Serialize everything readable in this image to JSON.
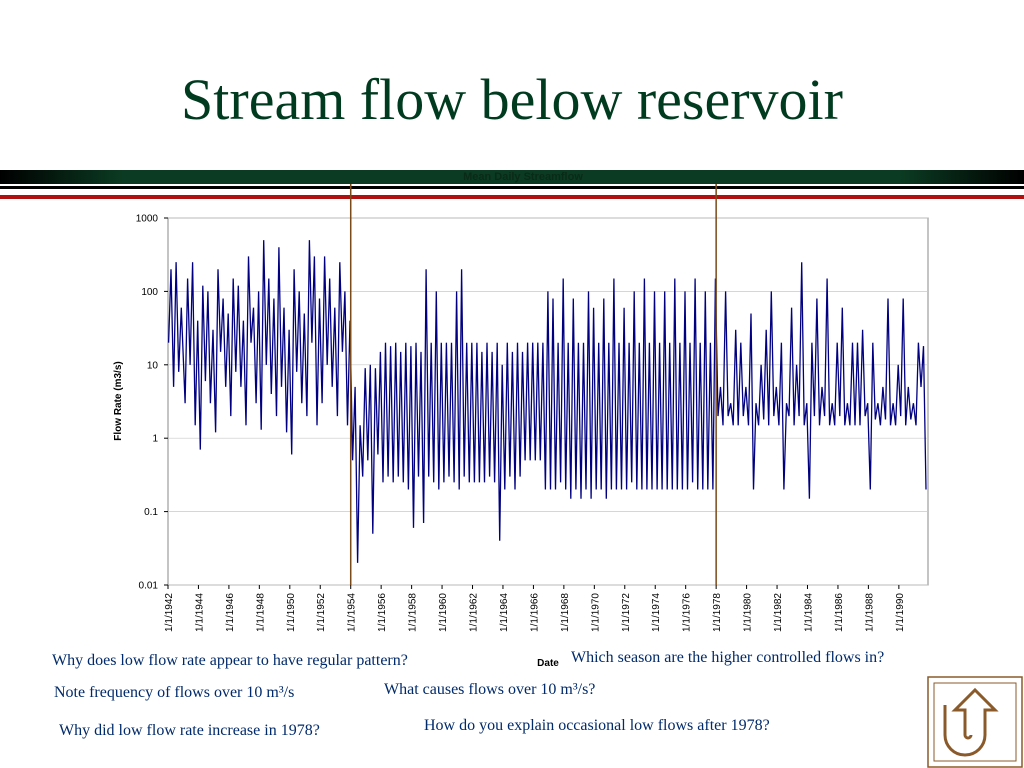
{
  "header": {
    "title": "Stream flow below reservoir"
  },
  "chart_data": {
    "type": "line",
    "title": "Mean Daily Streamflow",
    "x_label": "Date",
    "y_label": "Flow Rate (m3/s)",
    "log_y": true,
    "color": "#000080",
    "xlim": [
      "1942-01-01",
      "1991-12-01"
    ],
    "ylim": [
      0.01,
      1000
    ],
    "yticks": [
      0.01,
      0.1,
      1,
      10,
      100,
      1000
    ],
    "xticks": [
      {
        "value": "1942-01-01",
        "label": "1/1/1942"
      },
      {
        "value": "1944-01-01",
        "label": "1/1/1944"
      },
      {
        "value": "1946-01-01",
        "label": "1/1/1946"
      },
      {
        "value": "1948-01-01",
        "label": "1/1/1948"
      },
      {
        "value": "1950-01-01",
        "label": "1/1/1950"
      },
      {
        "value": "1952-01-01",
        "label": "1/1/1952"
      },
      {
        "value": "1954-01-01",
        "label": "1/1/1954"
      },
      {
        "value": "1956-01-01",
        "label": "1/1/1956"
      },
      {
        "value": "1958-01-01",
        "label": "1/1/1958"
      },
      {
        "value": "1960-01-01",
        "label": "1/1/1960"
      },
      {
        "value": "1962-01-01",
        "label": "1/1/1962"
      },
      {
        "value": "1964-01-01",
        "label": "1/1/1964"
      },
      {
        "value": "1966-01-01",
        "label": "1/1/1966"
      },
      {
        "value": "1968-01-01",
        "label": "1/1/1968"
      },
      {
        "value": "1970-01-01",
        "label": "1/1/1970"
      },
      {
        "value": "1972-01-01",
        "label": "1/1/1972"
      },
      {
        "value": "1974-01-01",
        "label": "1/1/1974"
      },
      {
        "value": "1976-01-01",
        "label": "1/1/1976"
      },
      {
        "value": "1978-01-01",
        "label": "1/1/1978"
      },
      {
        "value": "1980-01-01",
        "label": "1/1/1980"
      },
      {
        "value": "1982-01-01",
        "label": "1/1/1982"
      },
      {
        "value": "1984-01-01",
        "label": "1/1/1984"
      },
      {
        "value": "1986-01-01",
        "label": "1/1/1986"
      },
      {
        "value": "1988-01-01",
        "label": "1/1/1988"
      },
      {
        "value": "1990-01-01",
        "label": "1/1/1990"
      }
    ],
    "markers": [
      "1954-01-01",
      "1978-01-01"
    ],
    "x": [
      "1942-01-15",
      "1942-03-15",
      "1942-05-15",
      "1942-07-15",
      "1942-09-15",
      "1942-11-15",
      "1943-02-15",
      "1943-04-15",
      "1943-06-15",
      "1943-08-15",
      "1943-10-15",
      "1943-12-15",
      "1944-02-15",
      "1944-04-15",
      "1944-06-15",
      "1944-08-15",
      "1944-10-15",
      "1944-12-15",
      "1945-02-15",
      "1945-04-15",
      "1945-06-15",
      "1945-08-15",
      "1945-10-15",
      "1945-12-15",
      "1946-02-15",
      "1946-04-15",
      "1946-06-15",
      "1946-08-15",
      "1946-10-15",
      "1946-12-15",
      "1947-02-15",
      "1947-04-15",
      "1947-06-15",
      "1947-08-15",
      "1947-10-15",
      "1947-12-15",
      "1948-02-15",
      "1948-04-15",
      "1948-06-15",
      "1948-08-15",
      "1948-10-15",
      "1948-12-15",
      "1949-02-15",
      "1949-04-15",
      "1949-06-15",
      "1949-08-15",
      "1949-10-15",
      "1949-12-15",
      "1950-02-15",
      "1950-04-15",
      "1950-06-15",
      "1950-08-15",
      "1950-10-15",
      "1950-12-15",
      "1951-02-15",
      "1951-04-15",
      "1951-06-15",
      "1951-08-15",
      "1951-10-15",
      "1951-12-15",
      "1952-02-15",
      "1952-04-15",
      "1952-06-15",
      "1952-08-15",
      "1952-10-15",
      "1952-12-15",
      "1953-02-15",
      "1953-04-15",
      "1953-06-15",
      "1953-08-15",
      "1953-10-15",
      "1953-12-15",
      "1954-02-15",
      "1954-04-15",
      "1954-06-15",
      "1954-08-15",
      "1954-10-15",
      "1954-12-15",
      "1955-02-15",
      "1955-04-15",
      "1955-06-15",
      "1955-08-15",
      "1955-10-15",
      "1955-12-15",
      "1956-02-15",
      "1956-04-15",
      "1956-06-15",
      "1956-08-15",
      "1956-10-15",
      "1956-12-15",
      "1957-02-15",
      "1957-04-15",
      "1957-06-15",
      "1957-08-15",
      "1957-10-15",
      "1957-12-15",
      "1958-02-15",
      "1958-04-15",
      "1958-06-15",
      "1958-08-15",
      "1958-10-15",
      "1958-12-15",
      "1959-02-15",
      "1959-04-15",
      "1959-06-15",
      "1959-08-15",
      "1959-10-15",
      "1959-12-15",
      "1960-02-15",
      "1960-04-15",
      "1960-06-15",
      "1960-08-15",
      "1960-10-15",
      "1960-12-15",
      "1961-02-15",
      "1961-04-15",
      "1961-06-15",
      "1961-08-15",
      "1961-10-15",
      "1961-12-15",
      "1962-02-15",
      "1962-04-15",
      "1962-06-15",
      "1962-08-15",
      "1962-10-15",
      "1962-12-15",
      "1963-02-15",
      "1963-04-15",
      "1963-06-15",
      "1963-08-15",
      "1963-10-15",
      "1963-12-15",
      "1964-02-15",
      "1964-04-15",
      "1964-06-15",
      "1964-08-15",
      "1964-10-15",
      "1964-12-15",
      "1965-02-15",
      "1965-04-15",
      "1965-06-15",
      "1965-08-15",
      "1965-10-15",
      "1965-12-15",
      "1966-02-15",
      "1966-04-15",
      "1966-06-15",
      "1966-08-15",
      "1966-10-15",
      "1966-12-15",
      "1967-02-15",
      "1967-04-15",
      "1967-06-15",
      "1967-08-15",
      "1967-10-15",
      "1967-12-15",
      "1968-02-15",
      "1968-04-15",
      "1968-06-15",
      "1968-08-15",
      "1968-10-15",
      "1968-12-15",
      "1969-02-15",
      "1969-04-15",
      "1969-06-15",
      "1969-08-15",
      "1969-10-15",
      "1969-12-15",
      "1970-02-15",
      "1970-04-15",
      "1970-06-15",
      "1970-08-15",
      "1970-10-15",
      "1970-12-15",
      "1971-02-15",
      "1971-04-15",
      "1971-06-15",
      "1971-08-15",
      "1971-10-15",
      "1971-12-15",
      "1972-02-15",
      "1972-04-15",
      "1972-06-15",
      "1972-08-15",
      "1972-10-15",
      "1972-12-15",
      "1973-02-15",
      "1973-04-15",
      "1973-06-15",
      "1973-08-15",
      "1973-10-15",
      "1973-12-15",
      "1974-02-15",
      "1974-04-15",
      "1974-06-15",
      "1974-08-15",
      "1974-10-15",
      "1974-12-15",
      "1975-02-15",
      "1975-04-15",
      "1975-06-15",
      "1975-08-15",
      "1975-10-15",
      "1975-12-15",
      "1976-02-15",
      "1976-04-15",
      "1976-06-15",
      "1976-08-15",
      "1976-10-15",
      "1976-12-15",
      "1977-02-15",
      "1977-04-15",
      "1977-06-15",
      "1977-08-15",
      "1977-10-15",
      "1977-12-15",
      "1978-02-15",
      "1978-04-15",
      "1978-06-15",
      "1978-08-15",
      "1978-10-15",
      "1978-12-15",
      "1979-02-15",
      "1979-04-15",
      "1979-06-15",
      "1979-08-15",
      "1979-10-15",
      "1979-12-15",
      "1980-02-15",
      "1980-04-15",
      "1980-06-15",
      "1980-08-15",
      "1980-10-15",
      "1980-12-15",
      "1981-02-15",
      "1981-04-15",
      "1981-06-15",
      "1981-08-15",
      "1981-10-15",
      "1981-12-15",
      "1982-02-15",
      "1982-04-15",
      "1982-06-15",
      "1982-08-15",
      "1982-10-15",
      "1982-12-15",
      "1983-02-15",
      "1983-04-15",
      "1983-06-15",
      "1983-08-15",
      "1983-10-15",
      "1983-12-15",
      "1984-02-15",
      "1984-04-15",
      "1984-06-15",
      "1984-08-15",
      "1984-10-15",
      "1984-12-15",
      "1985-02-15",
      "1985-04-15",
      "1985-06-15",
      "1985-08-15",
      "1985-10-15",
      "1985-12-15",
      "1986-02-15",
      "1986-04-15",
      "1986-06-15",
      "1986-08-15",
      "1986-10-15",
      "1986-12-15",
      "1987-02-15",
      "1987-04-15",
      "1987-06-15",
      "1987-08-15",
      "1987-10-15",
      "1987-12-15",
      "1988-02-15",
      "1988-04-15",
      "1988-06-15",
      "1988-08-15",
      "1988-10-15",
      "1988-12-15",
      "1989-02-15",
      "1989-04-15",
      "1989-06-15",
      "1989-08-15",
      "1989-10-15",
      "1989-12-15",
      "1990-02-15",
      "1990-04-15",
      "1990-06-15",
      "1990-08-15",
      "1990-10-15",
      "1990-12-15",
      "1991-02-15",
      "1991-04-15",
      "1991-06-15",
      "1991-08-15",
      "1991-10-15"
    ],
    "values": [
      20,
      200,
      5,
      250,
      8,
      60,
      3,
      150,
      10,
      250,
      1.5,
      40,
      0.7,
      120,
      6,
      100,
      3,
      30,
      1.2,
      200,
      15,
      80,
      5,
      50,
      2,
      150,
      8,
      120,
      5,
      40,
      1.5,
      300,
      20,
      60,
      3,
      100,
      1.3,
      500,
      10,
      150,
      4,
      80,
      2,
      400,
      5,
      60,
      1.2,
      30,
      0.6,
      200,
      8,
      100,
      3,
      50,
      2,
      500,
      20,
      300,
      1.5,
      80,
      3,
      300,
      10,
      150,
      5,
      60,
      2,
      250,
      15,
      100,
      1.5,
      40,
      0.5,
      5,
      0.02,
      1.5,
      0.3,
      9,
      0.5,
      10,
      0.05,
      9,
      0.6,
      15,
      0.25,
      20,
      0.3,
      18,
      0.25,
      20,
      0.3,
      15,
      0.25,
      20,
      0.2,
      18,
      0.06,
      20,
      0.3,
      15,
      0.07,
      200,
      0.3,
      20,
      0.25,
      100,
      0.2,
      20,
      0.25,
      20,
      0.3,
      20,
      0.25,
      100,
      0.2,
      200,
      0.3,
      20,
      0.25,
      20,
      0.25,
      20,
      0.25,
      15,
      0.25,
      20,
      0.3,
      15,
      0.25,
      20,
      0.04,
      10,
      0.2,
      20,
      0.3,
      15,
      0.2,
      20,
      0.3,
      15,
      0.5,
      20,
      0.5,
      20,
      0.5,
      20,
      0.5,
      20,
      0.2,
      100,
      0.2,
      80,
      0.2,
      20,
      0.25,
      150,
      0.2,
      20,
      0.15,
      80,
      0.2,
      20,
      0.15,
      20,
      0.2,
      100,
      0.15,
      60,
      0.2,
      20,
      0.2,
      80,
      0.15,
      20,
      0.2,
      150,
      0.2,
      20,
      0.2,
      60,
      0.2,
      20,
      0.25,
      100,
      0.2,
      20,
      0.2,
      150,
      0.2,
      20,
      0.2,
      100,
      0.2,
      20,
      0.2,
      100,
      0.2,
      20,
      0.2,
      150,
      0.2,
      20,
      0.2,
      100,
      0.2,
      20,
      0.25,
      150,
      0.2,
      20,
      0.2,
      100,
      0.2,
      20,
      0.2,
      150,
      2,
      5,
      1.5,
      100,
      2,
      3,
      1.5,
      30,
      1.5,
      20,
      2,
      5,
      1.5,
      50,
      0.2,
      3,
      1.5,
      10,
      1.8,
      30,
      1.5,
      100,
      2,
      5,
      1.5,
      20,
      0.2,
      3,
      2,
      60,
      1.5,
      10,
      2,
      250,
      1.5,
      3,
      0.15,
      20,
      2,
      80,
      1.5,
      5,
      2,
      150,
      1.5,
      3,
      1.5,
      20,
      2,
      60,
      1.5,
      3,
      1.5,
      20,
      1.5,
      20,
      1.5,
      30,
      2,
      3,
      0.2,
      20,
      1.8,
      3,
      1.5,
      5,
      1.8,
      80,
      1.5,
      3,
      1.5,
      10,
      2,
      80,
      1.5,
      5,
      1.8,
      3,
      1.5,
      20,
      5,
      18,
      0.2
    ]
  },
  "questions": [
    "Why does low flow rate appear to have regular pattern?",
    "Which season are the higher controlled flows in?",
    "Note frequency of flows over 10 m³/s",
    "What causes flows over 10 m³/s?",
    "Why did low flow rate increase in 1978?",
    "How do you explain occasional low flows after 1978?"
  ]
}
